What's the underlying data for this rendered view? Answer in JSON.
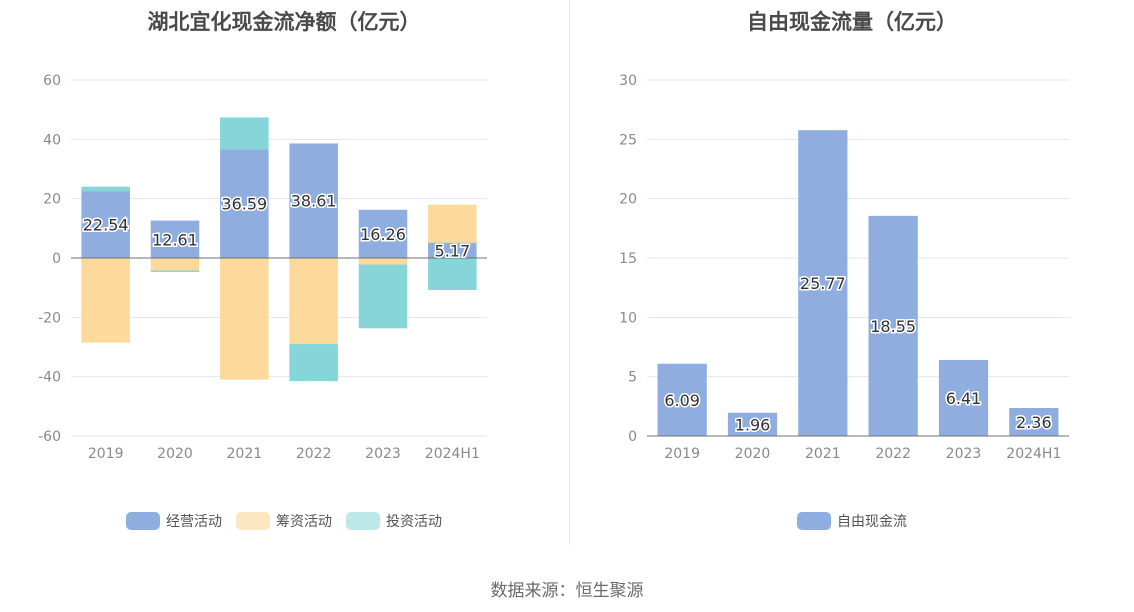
{
  "source": "数据来源：恒生聚源",
  "colors": {
    "operating": "#8fadde",
    "financing": "#fdd99b",
    "investing": "#86d5d9",
    "free_cash": "#8fadde",
    "legend_financing": "#fde7c2",
    "legend_investing": "#bde8ea"
  },
  "chart_data": [
    {
      "type": "bar",
      "stacked": true,
      "title": "湖北宜化现金流净额（亿元）",
      "categories": [
        "2019",
        "2020",
        "2021",
        "2022",
        "2023",
        "2024H1"
      ],
      "series": [
        {
          "name": "经营活动",
          "values": [
            22.54,
            12.61,
            36.59,
            38.61,
            16.26,
            5.17
          ]
        },
        {
          "name": "筹资活动",
          "values": [
            -28.5,
            -4.2,
            -41.0,
            -29.0,
            -2.2,
            12.8
          ]
        },
        {
          "name": "投资活动",
          "values": [
            1.5,
            -0.5,
            10.8,
            -12.5,
            -21.5,
            -10.8
          ]
        }
      ],
      "data_labels": [
        "22.54",
        "12.61",
        "36.59",
        "38.61",
        "16.26",
        "5.17"
      ],
      "yticks": [
        "60",
        "40",
        "20",
        "0",
        "-20",
        "-40",
        "-60"
      ],
      "ylim": [
        -60,
        60
      ],
      "grid": true,
      "legend_position": "bottom"
    },
    {
      "type": "bar",
      "title": "自由现金流量（亿元）",
      "categories": [
        "2019",
        "2020",
        "2021",
        "2022",
        "2023",
        "2024H1"
      ],
      "series": [
        {
          "name": "自由现金流",
          "values": [
            6.09,
            1.96,
            25.77,
            18.55,
            6.41,
            2.36
          ]
        }
      ],
      "data_labels": [
        "6.09",
        "1.96",
        "25.77",
        "18.55",
        "6.41",
        "2.36"
      ],
      "yticks": [
        "30",
        "25",
        "20",
        "15",
        "10",
        "5",
        "0"
      ],
      "ylim": [
        0,
        30
      ],
      "grid": true,
      "legend_position": "bottom"
    }
  ]
}
